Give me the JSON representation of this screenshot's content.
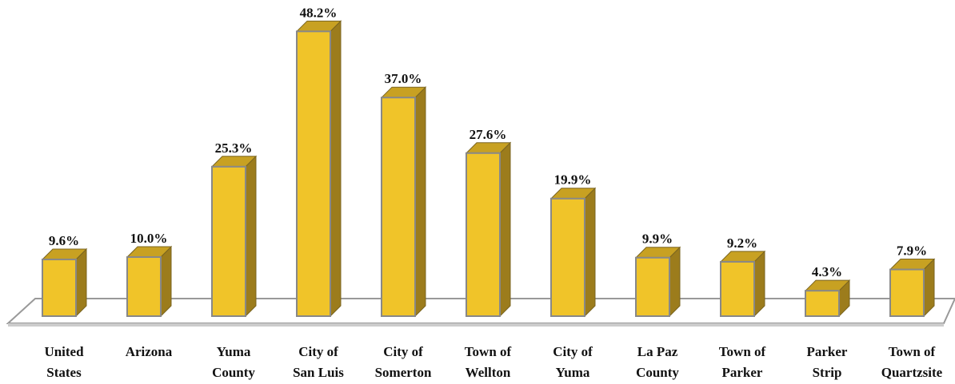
{
  "chart_data": {
    "type": "bar3d",
    "categories": [
      "United\nStates",
      "Arizona",
      "Yuma\nCounty",
      "City of\nSan Luis",
      "City of\nSomerton",
      "Town of\nWellton",
      "City of\nYuma",
      "La Paz\nCounty",
      "Town of\nParker",
      "Parker\nStrip",
      "Town of\nQuartzsite"
    ],
    "values": [
      9.6,
      10.0,
      25.3,
      48.2,
      37.0,
      27.6,
      19.9,
      9.9,
      9.2,
      4.3,
      7.9
    ],
    "value_labels": [
      "9.6%",
      "10.0%",
      "25.3%",
      "48.2%",
      "37.0%",
      "27.6%",
      "19.9%",
      "9.9%",
      "9.2%",
      "4.3%",
      "7.9%"
    ],
    "color": "#f0c429",
    "side_color": "#9c7c1c",
    "top_color": "#c8a122"
  }
}
